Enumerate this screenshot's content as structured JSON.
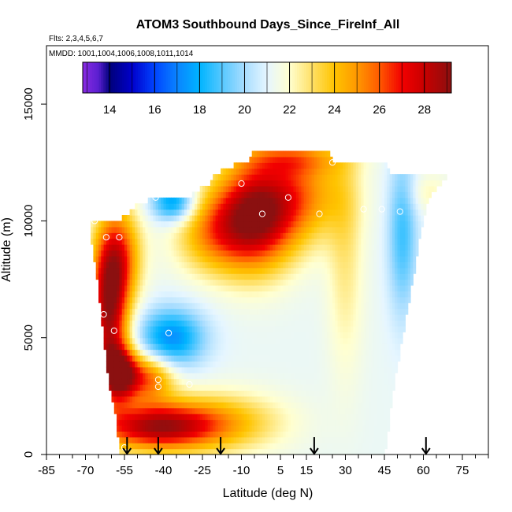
{
  "chart_data": {
    "type": "heatmap",
    "title": "ATOM3 Southbound Days_Since_FireInf_All",
    "flights_label": "Flts: 2,3,4,5,6,7",
    "mmdd_label": "MMDD: 1001,1004,1006,1008,1011,1014",
    "xlabel": "Latitude (deg N)",
    "ylabel": "Altitude (m)",
    "xlim": [
      -85,
      85
    ],
    "ylim": [
      0,
      17500
    ],
    "x_ticks": [
      -85,
      -70,
      -55,
      -40,
      -25,
      -10,
      5,
      15,
      30,
      45,
      60,
      75
    ],
    "x_minor_step": 5,
    "y_ticks": [
      0,
      5000,
      10000,
      15000
    ],
    "colorbar": {
      "range": [
        12.8,
        29.2
      ],
      "ticks": [
        14,
        16,
        18,
        20,
        22,
        24,
        26,
        28
      ],
      "stops": [
        {
          "v": 12.8,
          "c": "#8a2be2"
        },
        {
          "v": 13.5,
          "c": "#5a1fd0"
        },
        {
          "v": 14.0,
          "c": "#00007a"
        },
        {
          "v": 15.0,
          "c": "#0000cc"
        },
        {
          "v": 16.0,
          "c": "#0044ff"
        },
        {
          "v": 17.0,
          "c": "#0a84ff"
        },
        {
          "v": 18.0,
          "c": "#00b4ff"
        },
        {
          "v": 19.0,
          "c": "#56c8ff"
        },
        {
          "v": 20.0,
          "c": "#a8ddff"
        },
        {
          "v": 21.0,
          "c": "#e6f6ff"
        },
        {
          "v": 22.0,
          "c": "#ffffd0"
        },
        {
          "v": 23.0,
          "c": "#ffe066"
        },
        {
          "v": 24.0,
          "c": "#ffc400"
        },
        {
          "v": 25.0,
          "c": "#ff9800"
        },
        {
          "v": 26.0,
          "c": "#ff5a00"
        },
        {
          "v": 27.0,
          "c": "#f20000"
        },
        {
          "v": 28.0,
          "c": "#c80000"
        },
        {
          "v": 29.2,
          "c": "#8b1010"
        }
      ]
    },
    "curtain": {
      "lat_min": -68,
      "lat_max": 69,
      "lat_step": 1,
      "alt_step": 250,
      "top_alt": [
        [
          -68,
          10000
        ],
        [
          -60,
          10000
        ],
        [
          -58,
          10000
        ],
        [
          -53,
          10400
        ],
        [
          -50,
          10800
        ],
        [
          -40,
          11000
        ],
        [
          -35,
          11000
        ],
        [
          -30,
          11000
        ],
        [
          -25,
          11500
        ],
        [
          -22,
          11500
        ],
        [
          -20,
          12000
        ],
        [
          -10,
          12500
        ],
        [
          -7,
          12500
        ],
        [
          -5,
          13000
        ],
        [
          10,
          13000
        ],
        [
          23,
          13000
        ],
        [
          25,
          12500
        ],
        [
          45,
          12500
        ],
        [
          47,
          12000
        ],
        [
          69,
          12000
        ]
      ],
      "bottom_alt": [
        [
          -68,
          9500
        ],
        [
          -66,
          8000
        ],
        [
          -64,
          6000
        ],
        [
          -62,
          4000
        ],
        [
          -60,
          2500
        ],
        [
          -58,
          1500
        ],
        [
          -57,
          0
        ],
        [
          45,
          0
        ],
        [
          46,
          500
        ],
        [
          48,
          2500
        ],
        [
          52,
          5000
        ],
        [
          56,
          7500
        ],
        [
          59,
          9500
        ],
        [
          62,
          11000
        ],
        [
          66,
          11500
        ],
        [
          69,
          11800
        ]
      ],
      "blobs": [
        {
          "lat": -44,
          "alt": 1200,
          "slat": 16,
          "salt": 700,
          "amp": 6.5
        },
        {
          "lat": -20,
          "alt": 1400,
          "slat": 18,
          "salt": 900,
          "amp": 3
        },
        {
          "lat": -57,
          "alt": 3500,
          "slat": 5,
          "salt": 800,
          "amp": 7
        },
        {
          "lat": -46,
          "alt": 3300,
          "slat": 7,
          "salt": 700,
          "amp": 4.5
        },
        {
          "lat": -61,
          "alt": 6000,
          "slat": 5,
          "salt": 2200,
          "amp": 7
        },
        {
          "lat": -57,
          "alt": 8500,
          "slat": 6,
          "salt": 1500,
          "amp": 4.5
        },
        {
          "lat": -37,
          "alt": 5000,
          "slat": 9,
          "salt": 900,
          "amp": -4
        },
        {
          "lat": -36,
          "alt": 10800,
          "slat": 6,
          "salt": 600,
          "amp": -4
        },
        {
          "lat": -5,
          "alt": 10200,
          "slat": 11,
          "salt": 1600,
          "amp": 7.5
        },
        {
          "lat": -22,
          "alt": 9500,
          "slat": 10,
          "salt": 1200,
          "amp": 3
        },
        {
          "lat": 13,
          "alt": 11200,
          "slat": 12,
          "salt": 1400,
          "amp": 3.5
        },
        {
          "lat": 10,
          "alt": 12700,
          "slat": 14,
          "salt": 500,
          "amp": 2.5
        },
        {
          "lat": 30,
          "alt": 8500,
          "slat": 5,
          "salt": 3500,
          "amp": 1.5
        },
        {
          "lat": 52,
          "alt": 9500,
          "slat": 4,
          "salt": 2500,
          "amp": -2.5
        },
        {
          "lat": 62,
          "alt": 11200,
          "slat": 6,
          "salt": 600,
          "amp": 1
        }
      ],
      "base_value": 21.2
    },
    "flight_points": [
      {
        "lat": -66.5,
        "alt": 10000
      },
      {
        "lat": -62,
        "alt": 9300
      },
      {
        "lat": -57,
        "alt": 9300
      },
      {
        "lat": -43,
        "alt": 11000
      },
      {
        "lat": -10,
        "alt": 11600
      },
      {
        "lat": -2,
        "alt": 10300
      },
      {
        "lat": 8,
        "alt": 11000
      },
      {
        "lat": 20,
        "alt": 10300
      },
      {
        "lat": 25,
        "alt": 12500
      },
      {
        "lat": 37,
        "alt": 10500
      },
      {
        "lat": 44,
        "alt": 10500
      },
      {
        "lat": 51,
        "alt": 10400
      },
      {
        "lat": -63,
        "alt": 6000
      },
      {
        "lat": -59,
        "alt": 5300
      },
      {
        "lat": -38,
        "alt": 5200
      },
      {
        "lat": -64,
        "alt": 3300
      },
      {
        "lat": -42,
        "alt": 3200
      },
      {
        "lat": -42,
        "alt": 2900
      },
      {
        "lat": -30,
        "alt": 3000
      },
      {
        "lat": -55,
        "alt": 300
      }
    ],
    "arrow_lats": [
      -54,
      -42,
      -18,
      18,
      61
    ]
  }
}
